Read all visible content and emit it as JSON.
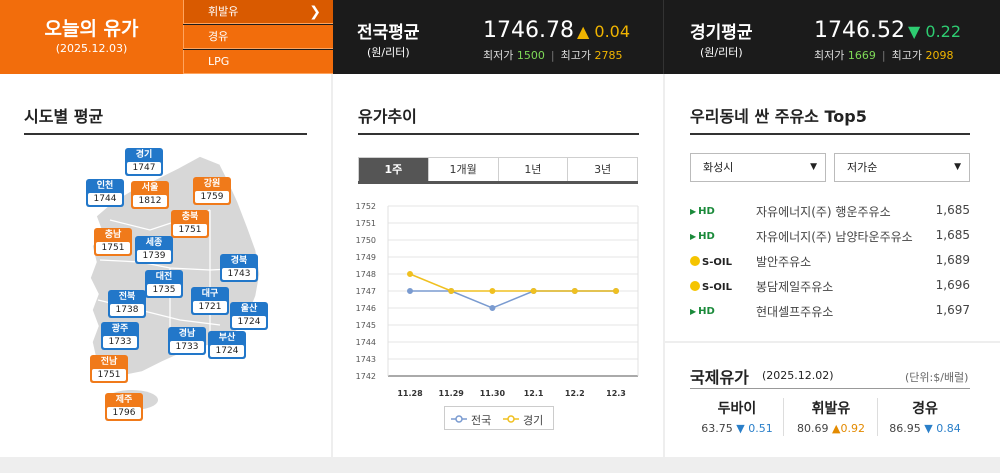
{
  "today": {
    "title": "오늘의 유가",
    "date": "(2025.12.03)"
  },
  "fuel_tabs": [
    {
      "label": "휘발유",
      "active": true
    },
    {
      "label": "경유"
    },
    {
      "label": "LPG"
    }
  ],
  "national": {
    "name": "전국평균",
    "unit": "(원/리터)",
    "price": "1746.78",
    "change": "▲ 0.04",
    "min_label": "최저가",
    "min": "1500",
    "max_label": "최고가",
    "max": "2785"
  },
  "gyeonggi": {
    "name": "경기평균",
    "unit": "(원/리터)",
    "price": "1746.52",
    "change": "▼ 0.22",
    "min_label": "최저가",
    "min": "1669",
    "max_label": "최고가",
    "max": "2098"
  },
  "colors": {
    "accent": "#f26d0c",
    "blue_pin": "#2277c9",
    "orange_pin": "#f07a1a",
    "national_line": "#7a9bd0",
    "gyeonggi_line": "#f0c020"
  },
  "region": {
    "title": "시도별 평균",
    "regions": [
      {
        "name": "경기",
        "value": "1747",
        "color": "blue"
      },
      {
        "name": "인천",
        "value": "1744",
        "color": "blue"
      },
      {
        "name": "서울",
        "value": "1812",
        "color": "orange"
      },
      {
        "name": "강원",
        "value": "1759",
        "color": "orange"
      },
      {
        "name": "충북",
        "value": "1751",
        "color": "orange"
      },
      {
        "name": "충남",
        "value": "1751",
        "color": "orange"
      },
      {
        "name": "세종",
        "value": "1739",
        "color": "blue"
      },
      {
        "name": "경북",
        "value": "1743",
        "color": "blue"
      },
      {
        "name": "대전",
        "value": "1735",
        "color": "blue"
      },
      {
        "name": "전북",
        "value": "1738",
        "color": "blue"
      },
      {
        "name": "대구",
        "value": "1721",
        "color": "blue"
      },
      {
        "name": "울산",
        "value": "1724",
        "color": "blue"
      },
      {
        "name": "광주",
        "value": "1733",
        "color": "blue"
      },
      {
        "name": "경남",
        "value": "1733",
        "color": "blue"
      },
      {
        "name": "부산",
        "value": "1724",
        "color": "blue"
      },
      {
        "name": "전남",
        "value": "1751",
        "color": "orange"
      },
      {
        "name": "제주",
        "value": "1796",
        "color": "orange"
      }
    ]
  },
  "trend": {
    "title": "유가추이",
    "tabs": [
      "1주",
      "1개월",
      "1년",
      "3년"
    ],
    "active_tab": 0
  },
  "chart_data": {
    "type": "line",
    "categories": [
      "11.28",
      "11.29",
      "11.30",
      "12.1",
      "12.2",
      "12.3"
    ],
    "series": [
      {
        "name": "전국",
        "values": [
          1747,
          1747,
          1746,
          1747,
          1747,
          1747
        ]
      },
      {
        "name": "경기",
        "values": [
          1748,
          1747,
          1747,
          1747,
          1747,
          1747
        ]
      }
    ],
    "yticks": [
      "1752",
      "1751",
      "1750",
      "1749",
      "1748",
      "1747",
      "1746",
      "1745",
      "1744",
      "1743",
      "1742"
    ],
    "ylim": [
      1742,
      1752
    ],
    "grid": true,
    "legend": "bottom"
  },
  "stations": {
    "title": "우리동네 싼 주유소 Top5",
    "region_select": "화성시",
    "sort_select": "저가순",
    "list": [
      {
        "brand": "HD",
        "brand_type": "hd",
        "name": "자유에너지(주) 행운주유소",
        "price": "1,685"
      },
      {
        "brand": "HD",
        "brand_type": "hd",
        "name": "자유에너지(주) 남양타운주유소",
        "price": "1,685"
      },
      {
        "brand": "S-OIL",
        "brand_type": "soil",
        "name": "발안주유소",
        "price": "1,689"
      },
      {
        "brand": "S-OIL",
        "brand_type": "soil",
        "name": "봉담제일주유소",
        "price": "1,696"
      },
      {
        "brand": "HD",
        "brand_type": "hd",
        "name": "현대셀프주유소",
        "price": "1,697"
      }
    ]
  },
  "intl": {
    "title": "국제유가",
    "date": "(2025.12.02)",
    "unit": "(단위:$/배럴)",
    "items": [
      {
        "name": "두바이",
        "price": "63.75",
        "change": "▼ 0.51",
        "dir": "down"
      },
      {
        "name": "휘발유",
        "price": "80.69",
        "change": "▲0.92",
        "dir": "up"
      },
      {
        "name": "경유",
        "price": "86.95",
        "change": "▼ 0.84",
        "dir": "down"
      }
    ]
  }
}
